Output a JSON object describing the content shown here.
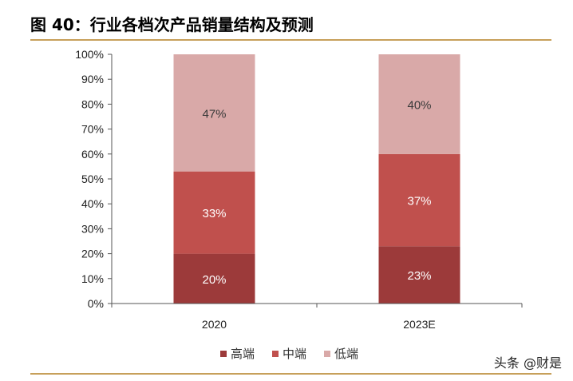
{
  "figure_title": "图 40：行业各档次产品销量结构及预测",
  "watermark": "头条 @财是",
  "chart_data": {
    "type": "bar",
    "stacked": true,
    "categories": [
      "2020",
      "2023E"
    ],
    "series": [
      {
        "name": "高端",
        "values": [
          20,
          23
        ],
        "labels": [
          "20%",
          "23%"
        ],
        "color": "#9c3a3a"
      },
      {
        "name": "中端",
        "values": [
          33,
          37
        ],
        "labels": [
          "33%",
          "37%"
        ],
        "color": "#c0504d"
      },
      {
        "name": "低端",
        "values": [
          47,
          40
        ],
        "labels": [
          "47%",
          "40%"
        ],
        "color": "#d9a9a8"
      }
    ],
    "yticks": [
      "0%",
      "10%",
      "20%",
      "30%",
      "40%",
      "50%",
      "60%",
      "70%",
      "80%",
      "90%",
      "100%"
    ],
    "ylim": [
      0,
      100
    ],
    "legend_position": "bottom",
    "grid": false
  }
}
